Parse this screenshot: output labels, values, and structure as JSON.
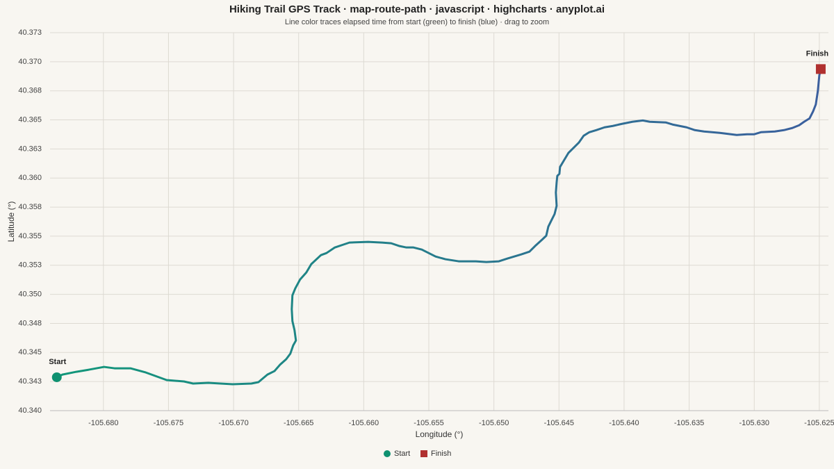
{
  "chart_data": {
    "type": "line",
    "title": "Hiking Trail GPS Track · map-route-path · javascript · highcharts · anyplot.ai",
    "subtitle": "Line color traces elapsed time from start (green) to finish (blue) · drag to zoom",
    "x_label": "Longitude (°)",
    "y_label": "Latitude (°)",
    "x": [
      -105.68358,
      -105.68315,
      -105.68208,
      -105.68112,
      -105.67995,
      -105.67915,
      -105.67792,
      -105.67674,
      -105.67514,
      -105.67381,
      -105.67311,
      -105.67194,
      -105.67007,
      -105.66863,
      -105.66809,
      -105.6674,
      -105.66686,
      -105.66644,
      -105.66596,
      -105.66564,
      -105.66542,
      -105.66521,
      -105.66532,
      -105.66548,
      -105.66553,
      -105.66548,
      -105.66526,
      -105.66489,
      -105.66441,
      -105.66403,
      -105.66329,
      -105.66286,
      -105.66222,
      -105.66158,
      -105.6611,
      -105.65966,
      -105.65859,
      -105.65789,
      -105.65725,
      -105.65672,
      -105.65618,
      -105.65554,
      -105.65501,
      -105.65448,
      -105.65373,
      -105.65271,
      -105.65138,
      -105.65058,
      -105.64962,
      -105.64898,
      -105.64791,
      -105.64727,
      -105.64684,
      -105.64631,
      -105.64598,
      -105.64582,
      -105.64561,
      -105.64534,
      -105.64518,
      -105.64524,
      -105.64518,
      -105.64513,
      -105.64497,
      -105.64492,
      -105.6446,
      -105.64428,
      -105.64385,
      -105.64348,
      -105.6431,
      -105.64267,
      -105.64214,
      -105.6415,
      -105.64086,
      -105.64016,
      -105.63936,
      -105.63856,
      -105.63803,
      -105.6368,
      -105.63627,
      -105.6352,
      -105.63456,
      -105.63386,
      -105.63264,
      -105.63135,
      -105.63055,
      -105.63002,
      -105.62949,
      -105.62842,
      -105.62772,
      -105.62708,
      -105.62655,
      -105.62617,
      -105.62575,
      -105.62548,
      -105.62527,
      -105.62511,
      -105.62505,
      -105.625,
      -105.62489
    ],
    "values": [
      40.34287,
      40.3431,
      40.34334,
      40.34352,
      40.34376,
      40.34364,
      40.34364,
      40.34328,
      40.34263,
      40.34251,
      40.34233,
      40.34239,
      40.34227,
      40.34233,
      40.34245,
      40.3431,
      40.3434,
      40.34394,
      40.34442,
      40.3449,
      40.34561,
      40.34603,
      40.34693,
      40.3477,
      40.34872,
      40.34991,
      40.35051,
      40.35128,
      40.35188,
      40.3526,
      40.35337,
      40.35355,
      40.35403,
      40.35427,
      40.35445,
      40.35451,
      40.35445,
      40.35439,
      40.35415,
      40.35403,
      40.35403,
      40.35385,
      40.35355,
      40.35325,
      40.35302,
      40.35284,
      40.35284,
      40.35278,
      40.35284,
      40.35307,
      40.35343,
      40.35367,
      40.35415,
      40.35469,
      40.35504,
      40.35582,
      40.3563,
      40.3569,
      40.35761,
      40.35875,
      40.35964,
      40.36018,
      40.36036,
      40.36095,
      40.36155,
      40.36215,
      40.36263,
      40.36304,
      40.36364,
      40.36394,
      40.36412,
      40.36436,
      40.36448,
      40.36466,
      40.36484,
      40.36495,
      40.36484,
      40.36478,
      40.3646,
      40.36436,
      40.36412,
      40.364,
      40.36388,
      40.3637,
      40.36376,
      40.36376,
      40.36394,
      40.364,
      40.36412,
      40.3643,
      40.36454,
      40.36484,
      40.36513,
      40.36573,
      40.36633,
      40.36752,
      40.36824,
      40.36883,
      40.36937
    ],
    "line_gradient": [
      "#12977a",
      "#3b5f9e"
    ],
    "markers": [
      {
        "name": "Start",
        "color": "#0f9170",
        "shape": "circle",
        "x": -105.68358,
        "y": 40.34287
      },
      {
        "name": "Finish",
        "color": "#b0302f",
        "shape": "square",
        "x": -105.62489,
        "y": 40.36937
      }
    ],
    "xlim": [
      -105.6841,
      -105.6243
    ],
    "ylim": [
      40.34,
      40.3725
    ],
    "xticks": [
      {
        "value": -105.68,
        "label": "-105.680"
      },
      -105.675,
      {
        "value": -105.67,
        "label": "-105.670"
      },
      -105.665,
      {
        "value": -105.66,
        "label": "-105.660"
      },
      -105.655,
      {
        "value": -105.65,
        "label": "-105.650"
      },
      -105.645,
      {
        "value": -105.64,
        "label": "-105.640"
      },
      -105.635,
      {
        "value": -105.63,
        "label": "-105.630"
      },
      -105.625
    ],
    "yticks": [
      {
        "value": 40.34,
        "label": "40.340"
      },
      {
        "value": 40.3425,
        "label": "40.343"
      },
      40.345,
      {
        "value": 40.3475,
        "label": "40.348"
      },
      {
        "value": 40.35,
        "label": "40.350"
      },
      {
        "value": 40.3525,
        "label": "40.353"
      },
      40.355,
      {
        "value": 40.3575,
        "label": "40.358"
      },
      {
        "value": 40.36,
        "label": "40.360"
      },
      {
        "value": 40.3625,
        "label": "40.363"
      },
      40.365,
      {
        "value": 40.3675,
        "label": "40.368"
      },
      {
        "value": 40.37,
        "label": "40.370"
      },
      {
        "value": 40.3725,
        "label": "40.373"
      }
    ],
    "grid": true
  }
}
